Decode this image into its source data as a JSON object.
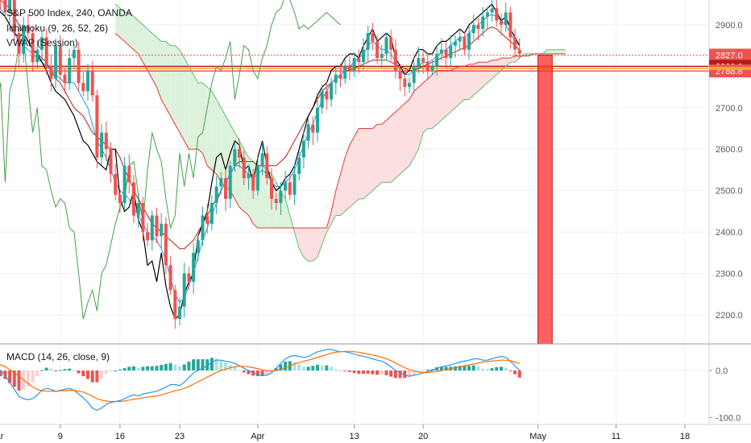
{
  "header": {
    "symbol_line": "S&P 500 Index, 240, OANDA",
    "ichimoku_line": "Ichimoku (9, 26, 52, 26)",
    "vwap_line": "VWAP (Session)"
  },
  "macd_legend": "MACD (14, 26, close, 9)",
  "colors": {
    "up_candle": "#26a69a",
    "down_candle": "#ef5350",
    "conversion_line": "#2196f3",
    "base_line": "#b71c1c",
    "lagging_span": "#43a047",
    "leading_span_a": "#66bb6a",
    "leading_span_b": "#e53935",
    "cloud_bull": "#d7f0d6",
    "cloud_bear": "#fbd9d9",
    "vwap": "#000000",
    "macd_line": "#2196f3",
    "signal_line": "#ff6d00",
    "hist_up": "#26a69a",
    "hist_down": "#ef5350",
    "level_red": "#b71c1c",
    "level_orange": "#f9a825",
    "highlight_bar": "#ff2b2b"
  },
  "price_levels": [
    {
      "value": 2827.0,
      "label": "2827.0",
      "style": "dotted",
      "color": "#ef5350"
    },
    {
      "value": 2800.0,
      "label": "2800.0",
      "style": "solid-dark",
      "color": "#b71c1c"
    },
    {
      "value": 2795.0,
      "label": "",
      "style": "solid-orange",
      "color": "#f9a825"
    },
    {
      "value": 2788.8,
      "label": "2788.8",
      "style": "solid-red",
      "color": "#ef5350"
    }
  ],
  "chart_data": [
    {
      "type": "line",
      "title": "S&P 500 Index, 240, OANDA",
      "indicators": [
        "Ichimoku (9, 26, 52, 26)",
        "VWAP (Session)"
      ],
      "xlabel": "",
      "ylabel": "",
      "ylim": [
        2130,
        2960
      ],
      "y_ticks": [
        2200.0,
        2300.0,
        2400.0,
        2500.0,
        2600.0,
        2700.0,
        2800.0,
        2900.0
      ],
      "x_ticks": [
        "Mar",
        "9",
        "16",
        "23",
        "Apr",
        "13",
        "20",
        "May",
        "11",
        "18"
      ],
      "x_tick_index": [
        0,
        14,
        27,
        40,
        57,
        78,
        93,
        118,
        135,
        150
      ],
      "grid": true,
      "close": [
        3000,
        2960,
        2930,
        2970,
        2880,
        2830,
        2900,
        2880,
        2810,
        2840,
        2870,
        2800,
        2770,
        2850,
        2780,
        2760,
        2820,
        2840,
        2760,
        2740,
        2790,
        2730,
        2580,
        2640,
        2600,
        2540,
        2490,
        2470,
        2560,
        2520,
        2440,
        2470,
        2400,
        2380,
        2440,
        2390,
        2420,
        2320,
        2260,
        2190,
        2220,
        2300,
        2280,
        2350,
        2380,
        2440,
        2420,
        2470,
        2510,
        2530,
        2480,
        2560,
        2600,
        2580,
        2530,
        2540,
        2500,
        2560,
        2590,
        2530,
        2480,
        2470,
        2500,
        2520,
        2490,
        2540,
        2580,
        2620,
        2660,
        2640,
        2700,
        2740,
        2720,
        2760,
        2780,
        2770,
        2800,
        2790,
        2820,
        2810,
        2840,
        2880,
        2860,
        2820,
        2830,
        2870,
        2840,
        2790,
        2770,
        2750,
        2760,
        2800,
        2820,
        2810,
        2790,
        2800,
        2830,
        2840,
        2820,
        2850,
        2860,
        2870,
        2840,
        2880,
        2900,
        2890,
        2920,
        2930,
        2940,
        2910,
        2900,
        2930,
        2870,
        2840,
        2830
      ],
      "vwap": [
        2950,
        2930,
        2920,
        2900,
        2880,
        2870,
        2880,
        2860,
        2840,
        2830,
        2810,
        2790,
        2760,
        2740,
        2730,
        2720,
        2700,
        2680,
        2650,
        2620,
        2610,
        2590,
        2570,
        2560,
        2550,
        2600,
        2600,
        2480,
        2450,
        2460,
        2500,
        2430,
        2400,
        2320,
        2330,
        2280,
        2350,
        2270,
        2220,
        2190,
        2200,
        2250,
        2280,
        2300,
        2390,
        2420,
        2450,
        2520,
        2580,
        2590,
        2550,
        2590,
        2620,
        2610,
        2550,
        2560,
        2520,
        2580,
        2620,
        2560,
        2520,
        2500,
        2510,
        2530,
        2540,
        2560,
        2600,
        2640,
        2680,
        2700,
        2730,
        2750,
        2760,
        2790,
        2800,
        2800,
        2820,
        2830,
        2830,
        2820,
        2850,
        2870,
        2890,
        2860,
        2870,
        2880,
        2870,
        2820,
        2800,
        2780,
        2790,
        2820,
        2840,
        2840,
        2830,
        2830,
        2850,
        2860,
        2860,
        2870,
        2880,
        2890,
        2880,
        2900,
        2910,
        2920,
        2930,
        2940,
        2950,
        2930,
        2910,
        2920,
        2890,
        2870,
        2850
      ],
      "conversion": [
        2960,
        2940,
        2920,
        2900,
        2880,
        2860,
        2850,
        2840,
        2830,
        2820,
        2810,
        2800,
        2790,
        2780,
        2770,
        2760,
        2760,
        2760,
        2740,
        2720,
        2700,
        2660,
        2620,
        2600,
        2580,
        2550,
        2520,
        2500,
        2490,
        2480,
        2460,
        2440,
        2420,
        2400,
        2390,
        2380,
        2360,
        2330,
        2290,
        2250,
        2230,
        2240,
        2270,
        2300,
        2340,
        2380,
        2410,
        2440,
        2470,
        2500,
        2520,
        2540,
        2560,
        2560,
        2550,
        2540,
        2530,
        2540,
        2550,
        2540,
        2520,
        2510,
        2510,
        2520,
        2530,
        2550,
        2580,
        2610,
        2640,
        2660,
        2690,
        2720,
        2740,
        2760,
        2770,
        2780,
        2790,
        2800,
        2810,
        2820,
        2830,
        2850,
        2860,
        2850,
        2840,
        2840,
        2830,
        2810,
        2790,
        2780,
        2780,
        2790,
        2800,
        2810,
        2810,
        2815,
        2825,
        2835,
        2840,
        2850,
        2860,
        2870,
        2870,
        2880,
        2890,
        2900,
        2910,
        2920,
        2925,
        2920,
        2910,
        2900,
        2880,
        2860,
        2850
      ],
      "base": [
        2970,
        2960,
        2950,
        2940,
        2920,
        2900,
        2880,
        2860,
        2840,
        2830,
        2820,
        2810,
        2790,
        2770,
        2760,
        2740,
        2720,
        2700,
        2690,
        2680,
        2660,
        2640,
        2630,
        2620,
        2610,
        2600,
        2600,
        2580,
        2550,
        2530,
        2500,
        2480,
        2460,
        2440,
        2420,
        2410,
        2400,
        2390,
        2380,
        2370,
        2360,
        2360,
        2370,
        2380,
        2400,
        2420,
        2440,
        2460,
        2480,
        2500,
        2520,
        2540,
        2560,
        2570,
        2570,
        2570,
        2570,
        2560,
        2560,
        2560,
        2560,
        2560,
        2570,
        2580,
        2600,
        2620,
        2640,
        2660,
        2680,
        2700,
        2720,
        2740,
        2750,
        2760,
        2770,
        2780,
        2790,
        2790,
        2795,
        2800,
        2805,
        2810,
        2815,
        2815,
        2815,
        2815,
        2810,
        2805,
        2800,
        2795,
        2790,
        2790,
        2795,
        2800,
        2805,
        2810,
        2815,
        2820,
        2825,
        2830,
        2835,
        2840,
        2845,
        2850,
        2860,
        2870,
        2880,
        2890,
        2895,
        2890,
        2880,
        2870,
        2860,
        2850,
        2840
      ],
      "lagging": [
        2700,
        2760,
        2520,
        2740,
        2780,
        2850,
        2870,
        2750,
        2640,
        2700,
        2560,
        2550,
        2500,
        2460,
        2480,
        2470,
        2410,
        2400,
        2300,
        2190,
        2230,
        2260,
        2210,
        2300,
        2320,
        2370,
        2420,
        2460,
        2480,
        2560,
        2570,
        2490,
        2420,
        2550,
        2640,
        2600,
        2570,
        2480,
        2410,
        2440,
        2590,
        2510,
        2590,
        2530,
        2630,
        2640,
        2700,
        2760,
        2800,
        2790,
        2820,
        2860,
        2720,
        2780,
        2850,
        2840,
        2790,
        2770,
        2820,
        2850,
        2900,
        2930,
        2940,
        2970,
        2960,
        2930,
        2890,
        2900,
        2890,
        2900,
        2910,
        2920,
        2930,
        2920,
        2910,
        2900
      ],
      "span_a": [
        2950,
        2940,
        2930,
        2930,
        2920,
        2910,
        2900,
        2890,
        2880,
        2870,
        2860,
        2860,
        2850,
        2850,
        2840,
        2820,
        2800,
        2780,
        2760,
        2760,
        2750,
        2740,
        2720,
        2700,
        2680,
        2660,
        2640,
        2620,
        2600,
        2580,
        2570,
        2560,
        2560,
        2550,
        2540,
        2520,
        2500,
        2480,
        2440,
        2400,
        2360,
        2340,
        2330,
        2330,
        2340,
        2370,
        2400,
        2420,
        2440,
        2440,
        2450,
        2460,
        2470,
        2480,
        2480,
        2490,
        2500,
        2510,
        2520,
        2520,
        2520,
        2530,
        2540,
        2550,
        2560,
        2580,
        2600,
        2640,
        2650,
        2650,
        2660,
        2670,
        2680,
        2690,
        2700,
        2710,
        2720,
        2720,
        2730,
        2740,
        2750,
        2760,
        2770,
        2780,
        2790,
        2800,
        2810,
        2810,
        2820,
        2830,
        2830,
        2830,
        2830,
        2830,
        2840,
        2840,
        2840,
        2840,
        2840
      ],
      "span_b": [
        2880,
        2870,
        2860,
        2850,
        2840,
        2830,
        2810,
        2790,
        2770,
        2750,
        2720,
        2700,
        2680,
        2660,
        2640,
        2620,
        2600,
        2600,
        2600,
        2590,
        2560,
        2550,
        2540,
        2520,
        2510,
        2500,
        2480,
        2460,
        2450,
        2440,
        2420,
        2410,
        2410,
        2410,
        2410,
        2410,
        2410,
        2410,
        2410,
        2410,
        2410,
        2410,
        2410,
        2410,
        2410,
        2410,
        2410,
        2450,
        2500,
        2540,
        2580,
        2610,
        2630,
        2650,
        2650,
        2650,
        2650,
        2660,
        2660,
        2670,
        2680,
        2690,
        2700,
        2710,
        2720,
        2740,
        2750,
        2760,
        2770,
        2780,
        2790,
        2790,
        2790,
        2790,
        2795,
        2800,
        2800,
        2805,
        2805,
        2810,
        2810,
        2810,
        2815,
        2815,
        2820,
        2820,
        2820,
        2825,
        2825,
        2825,
        2825,
        2830,
        2830,
        2830,
        2830,
        2830,
        2830,
        2830,
        2830
      ],
      "levels": [
        2827.0,
        2800.0,
        2795.0,
        2788.8
      ]
    },
    {
      "type": "bar",
      "title": "MACD (14, 26, close, 9)",
      "ylim": [
        -115,
        55
      ],
      "y_ticks": [
        0.0,
        -100.0
      ],
      "macd": [
        5,
        0,
        -10,
        -25,
        -40,
        -55,
        -60,
        -62,
        -60,
        -52,
        -42,
        -38,
        -40,
        -45,
        -42,
        -40,
        -38,
        -42,
        -50,
        -58,
        -68,
        -80,
        -85,
        -80,
        -72,
        -68,
        -66,
        -64,
        -60,
        -55,
        -52,
        -54,
        -50,
        -48,
        -46,
        -44,
        -40,
        -35,
        -30,
        -30,
        -32,
        -25,
        -15,
        -5,
        0,
        5,
        10,
        18,
        22,
        22,
        20,
        18,
        15,
        10,
        5,
        0,
        -5,
        -8,
        -10,
        -10,
        -5,
        5,
        15,
        25,
        30,
        32,
        30,
        28,
        30,
        35,
        40,
        42,
        45,
        45,
        42,
        40,
        40,
        38,
        35,
        32,
        30,
        28,
        25,
        22,
        20,
        15,
        8,
        0,
        -5,
        -10,
        -12,
        -10,
        -8,
        -5,
        -2,
        0,
        5,
        8,
        10,
        12,
        15,
        18,
        20,
        22,
        25,
        25,
        22,
        22,
        25,
        28,
        30,
        28,
        20,
        10,
        0
      ],
      "signal": [
        15,
        12,
        8,
        2,
        -5,
        -12,
        -20,
        -28,
        -35,
        -40,
        -43,
        -44,
        -44,
        -44,
        -43,
        -43,
        -42,
        -42,
        -44,
        -46,
        -50,
        -55,
        -60,
        -63,
        -65,
        -66,
        -66,
        -66,
        -65,
        -63,
        -61,
        -60,
        -58,
        -57,
        -55,
        -54,
        -52,
        -49,
        -46,
        -43,
        -41,
        -38,
        -34,
        -29,
        -24,
        -19,
        -14,
        -9,
        -4,
        0,
        3,
        6,
        8,
        9,
        9,
        8,
        6,
        4,
        2,
        0,
        -1,
        0,
        2,
        6,
        10,
        14,
        17,
        20,
        22,
        25,
        28,
        31,
        34,
        37,
        39,
        40,
        41,
        41,
        40,
        39,
        37,
        35,
        33,
        31,
        28,
        25,
        21,
        16,
        11,
        6,
        2,
        -1,
        -3,
        -4,
        -4,
        -3,
        -2,
        0,
        2,
        4,
        6,
        8,
        10,
        12,
        14,
        16,
        18,
        19,
        20,
        21,
        22,
        22,
        21,
        18,
        15
      ]
    }
  ],
  "x_axis_labels": [
    "Mar",
    "9",
    "16",
    "23",
    "Apr",
    "13",
    "20",
    "May",
    "11",
    "18"
  ],
  "price_axis_labels": [
    "2900.0",
    "2800.0",
    "2700.0",
    "2600.0",
    "2500.0",
    "2400.0",
    "2300.0",
    "2200.0"
  ],
  "macd_axis_labels": [
    "0.0",
    "-100.0"
  ],
  "highlight": {
    "from_index": 118,
    "to_index": 119
  }
}
